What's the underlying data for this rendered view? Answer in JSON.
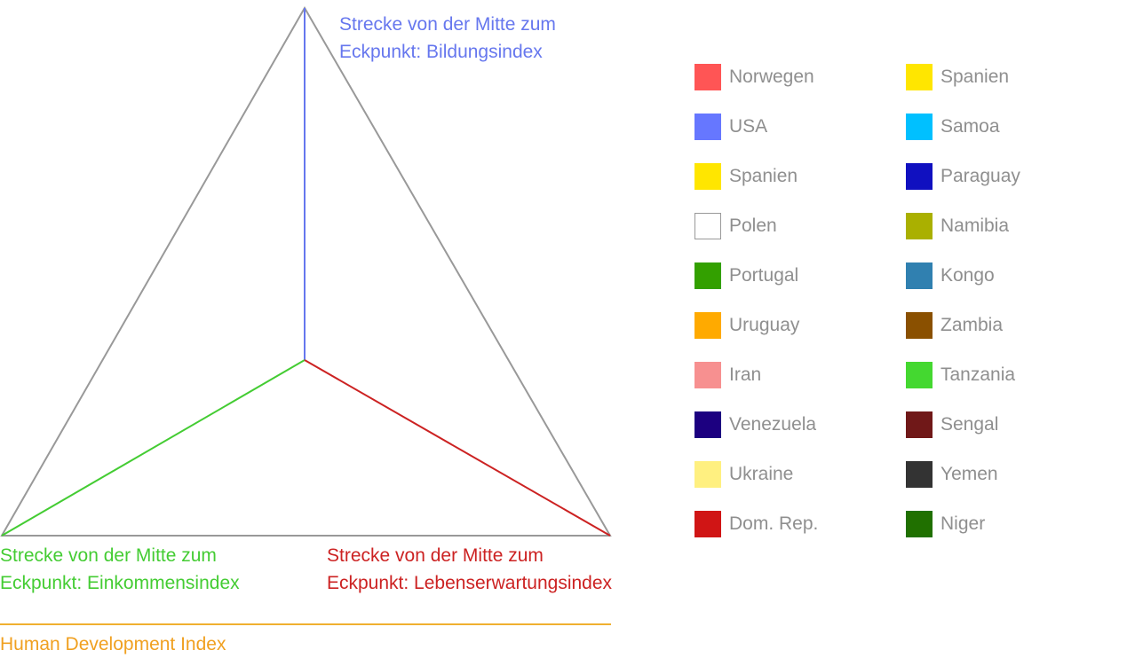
{
  "diagram": {
    "spokes": {
      "education": {
        "label": [
          "Strecke von der Mitte zum",
          "Eckpunkt: Bildungsindex"
        ],
        "color": "#6677ee"
      },
      "income": {
        "label": [
          "Strecke von der Mitte zum",
          "Eckpunkt: Einkommensindex"
        ],
        "color": "#44cc33"
      },
      "life_expectancy": {
        "label": [
          "Strecke von der Mitte zum",
          "Eckpunkt: Lebenserwartungsindex"
        ],
        "color": "#cc2222"
      }
    },
    "triangle_color": "#999999",
    "footer_title": "Human Development Index",
    "footer_color": "#f0a020"
  },
  "legend": {
    "items": [
      {
        "label": "Norwegen",
        "color": "#ff5555"
      },
      {
        "label": "USA",
        "color": "#6677ff"
      },
      {
        "label": "Spanien",
        "color": "#ffe600"
      },
      {
        "label": "Polen",
        "color": "#ffffff",
        "outlined": true
      },
      {
        "label": "Portugal",
        "color": "#33a000"
      },
      {
        "label": "Uruguay",
        "color": "#ffaa00"
      },
      {
        "label": "Iran",
        "color": "#f79090"
      },
      {
        "label": "Venezuela",
        "color": "#1c0080"
      },
      {
        "label": "Ukraine",
        "color": "#fff080"
      },
      {
        "label": "Dom. Rep.",
        "color": "#d01515"
      },
      {
        "label": "Spanien",
        "color": "#ffe600"
      },
      {
        "label": "Samoa",
        "color": "#00c0ff"
      },
      {
        "label": "Paraguay",
        "color": "#1010c0"
      },
      {
        "label": "Namibia",
        "color": "#aab000"
      },
      {
        "label": "Kongo",
        "color": "#3080b0"
      },
      {
        "label": "Zambia",
        "color": "#8a5000"
      },
      {
        "label": "Tanzania",
        "color": "#44d830"
      },
      {
        "label": "Sengal",
        "color": "#701818"
      },
      {
        "label": "Yemen",
        "color": "#333333"
      },
      {
        "label": "Niger",
        "color": "#207000"
      }
    ]
  }
}
